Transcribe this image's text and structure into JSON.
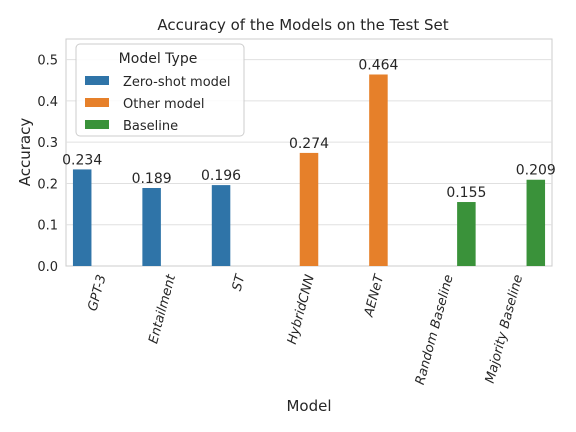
{
  "chart_data": {
    "type": "bar",
    "title": "Accuracy of the Models on the Test Set",
    "xlabel": "Model",
    "ylabel": "Accuracy",
    "ylim": [
      0,
      0.55
    ],
    "yticks": [
      "0.0",
      "0.1",
      "0.2",
      "0.3",
      "0.4",
      "0.5"
    ],
    "grid": true,
    "categories": [
      "GPT-3",
      "Entailment",
      "ST",
      "HybridCNN",
      "AENeT",
      "Random Baseline",
      "Majority Baseline"
    ],
    "legend": {
      "title": "Model Type",
      "placement": "top-left",
      "entries": [
        {
          "name": "Zero-shot model",
          "color": "#2f74a8"
        },
        {
          "name": "Other model",
          "color": "#e6802a"
        },
        {
          "name": "Baseline",
          "color": "#3a923a"
        }
      ]
    },
    "series": [
      {
        "name": "Zero-shot model",
        "color": "#2f74a8",
        "values": [
          0.234,
          0.189,
          0.196,
          null,
          null,
          null,
          null
        ],
        "labels": [
          "0.234",
          "0.189",
          "0.196",
          null,
          null,
          null,
          null
        ]
      },
      {
        "name": "Other model",
        "color": "#e6802a",
        "values": [
          null,
          null,
          null,
          0.274,
          0.464,
          null,
          null
        ],
        "labels": [
          null,
          null,
          null,
          "0.274",
          "0.464",
          null,
          null
        ]
      },
      {
        "name": "Baseline",
        "color": "#3a923a",
        "values": [
          null,
          null,
          null,
          null,
          null,
          0.155,
          0.209
        ],
        "labels": [
          null,
          null,
          null,
          null,
          null,
          "0.155",
          "0.209"
        ]
      }
    ]
  }
}
